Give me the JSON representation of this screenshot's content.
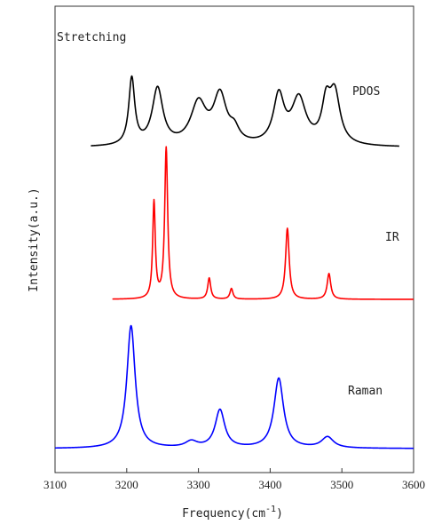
{
  "chart_data": {
    "type": "line",
    "title": "Stretching",
    "xlabel_base": "Frequency",
    "xlabel_unit_prefix": "(cm",
    "xlabel_unit_exp": "-1",
    "xlabel_unit_suffix": ")",
    "ylabel": "Intensity(a.u.)",
    "xlim": [
      3100,
      3600
    ],
    "xticks": [
      3100,
      3200,
      3300,
      3400,
      3500,
      3600
    ],
    "xtick_labels": [
      "3100",
      "3200",
      "3300",
      "3400",
      "3500",
      "3600"
    ],
    "series": [
      {
        "name": "PDOS",
        "color": "#000000",
        "range": [
          3150,
          3580
        ],
        "peaks": [
          {
            "x": 3207,
            "h": 1.0,
            "w": 5
          },
          {
            "x": 3243,
            "h": 0.85,
            "w": 9
          },
          {
            "x": 3300,
            "h": 0.62,
            "w": 13
          },
          {
            "x": 3330,
            "h": 0.72,
            "w": 11
          },
          {
            "x": 3350,
            "h": 0.18,
            "w": 8
          },
          {
            "x": 3412,
            "h": 0.72,
            "w": 9
          },
          {
            "x": 3440,
            "h": 0.68,
            "w": 12
          },
          {
            "x": 3478,
            "h": 0.55,
            "w": 7
          },
          {
            "x": 3490,
            "h": 0.75,
            "w": 9
          }
        ]
      },
      {
        "name": "IR",
        "color": "#ff0000",
        "range": [
          3180,
          3600
        ],
        "peaks": [
          {
            "x": 3238,
            "h": 0.64,
            "w": 2.2
          },
          {
            "x": 3255,
            "h": 1.0,
            "w": 2.5
          },
          {
            "x": 3315,
            "h": 0.14,
            "w": 2.5
          },
          {
            "x": 3346,
            "h": 0.07,
            "w": 2.5
          },
          {
            "x": 3424,
            "h": 0.47,
            "w": 3
          },
          {
            "x": 3482,
            "h": 0.17,
            "w": 3
          }
        ]
      },
      {
        "name": "Raman",
        "color": "#0000ff",
        "range": [
          3100,
          3600
        ],
        "peaks": [
          {
            "x": 3206,
            "h": 1.0,
            "w": 7
          },
          {
            "x": 3290,
            "h": 0.05,
            "w": 10
          },
          {
            "x": 3330,
            "h": 0.31,
            "w": 8
          },
          {
            "x": 3412,
            "h": 0.57,
            "w": 8
          },
          {
            "x": 3480,
            "h": 0.09,
            "w": 10
          }
        ]
      }
    ]
  }
}
